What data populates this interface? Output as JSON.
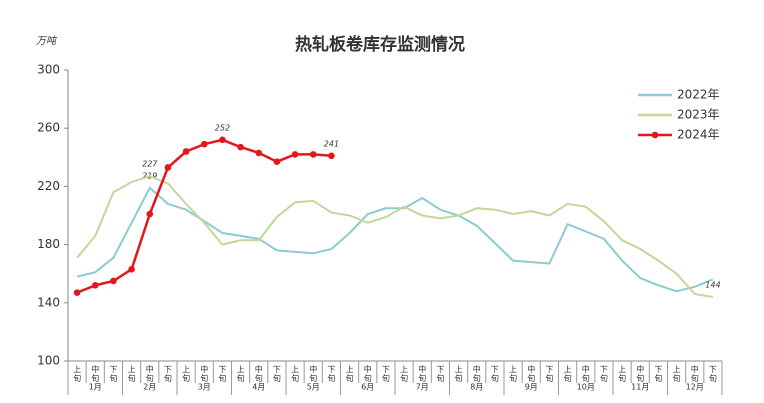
{
  "chart_data": {
    "type": "line",
    "title": "热轧板卷库存监测情况",
    "y_unit": "万吨",
    "months": [
      "1月",
      "2月",
      "3月",
      "4月",
      "5月",
      "6月",
      "7月",
      "8月",
      "9月",
      "10月",
      "11月",
      "12月"
    ],
    "categories": [
      "上旬",
      "中旬",
      "下旬",
      "上旬",
      "中旬",
      "下旬",
      "上旬",
      "中旬",
      "下旬",
      "上旬",
      "中旬",
      "下旬",
      "上旬",
      "中旬",
      "下旬",
      "上旬",
      "中旬",
      "下旬",
      "上旬",
      "中旬",
      "下旬",
      "上旬",
      "中旬",
      "下旬",
      "上旬",
      "中旬",
      "下旬",
      "上旬",
      "中旬",
      "下旬",
      "上旬",
      "中旬",
      "下旬",
      "上旬",
      "中旬",
      "下旬"
    ],
    "ylim": [
      100,
      300
    ],
    "yticks": [
      100,
      140,
      180,
      220,
      260,
      300
    ],
    "legend": "upper right",
    "series": [
      {
        "name": "2022年",
        "color": "#8ecad3",
        "markers": false,
        "values": [
          158,
          161,
          171,
          195,
          219,
          208,
          204,
          196,
          188,
          186,
          184,
          176,
          175,
          174,
          177,
          188,
          201,
          205,
          205,
          212,
          204,
          200,
          193,
          181,
          169,
          168,
          167,
          194,
          189,
          184,
          169,
          157,
          152,
          148,
          151,
          156
        ],
        "value_labels": [
          null,
          null,
          null,
          null,
          "219",
          null,
          null,
          null,
          null,
          null,
          null,
          null,
          null,
          null,
          null,
          null,
          null,
          null,
          null,
          null,
          null,
          null,
          null,
          null,
          null,
          null,
          null,
          null,
          null,
          null,
          null,
          null,
          null,
          null,
          null,
          null
        ]
      },
      {
        "name": "2023年",
        "color": "#c3d69b",
        "markers": false,
        "values": [
          171,
          186,
          216,
          223,
          227,
          222,
          208,
          195,
          180,
          183,
          183,
          199,
          209,
          210,
          202,
          200,
          195,
          199,
          206,
          200,
          198,
          200,
          205,
          204,
          201,
          203,
          200,
          208,
          206,
          196,
          183,
          177,
          169,
          160,
          146,
          144
        ],
        "value_labels": [
          null,
          null,
          null,
          null,
          "227",
          null,
          null,
          null,
          null,
          null,
          null,
          null,
          null,
          null,
          null,
          null,
          null,
          null,
          null,
          null,
          null,
          null,
          null,
          null,
          null,
          null,
          null,
          null,
          null,
          null,
          null,
          null,
          null,
          null,
          null,
          "144"
        ]
      },
      {
        "name": "2024年",
        "color": "#e3171b",
        "markers": true,
        "values": [
          147,
          152,
          155,
          163,
          201,
          233,
          244,
          249,
          252,
          247,
          243,
          237,
          242,
          242,
          241,
          null,
          null,
          null,
          null,
          null,
          null,
          null,
          null,
          null,
          null,
          null,
          null,
          null,
          null,
          null,
          null,
          null,
          null,
          null,
          null,
          null
        ],
        "value_labels": [
          null,
          null,
          null,
          null,
          null,
          null,
          null,
          null,
          "252",
          null,
          null,
          null,
          null,
          null,
          "241",
          null,
          null,
          null,
          null,
          null,
          null,
          null,
          null,
          null,
          null,
          null,
          null,
          null,
          null,
          null,
          null,
          null,
          null,
          null,
          null,
          null
        ]
      }
    ]
  }
}
